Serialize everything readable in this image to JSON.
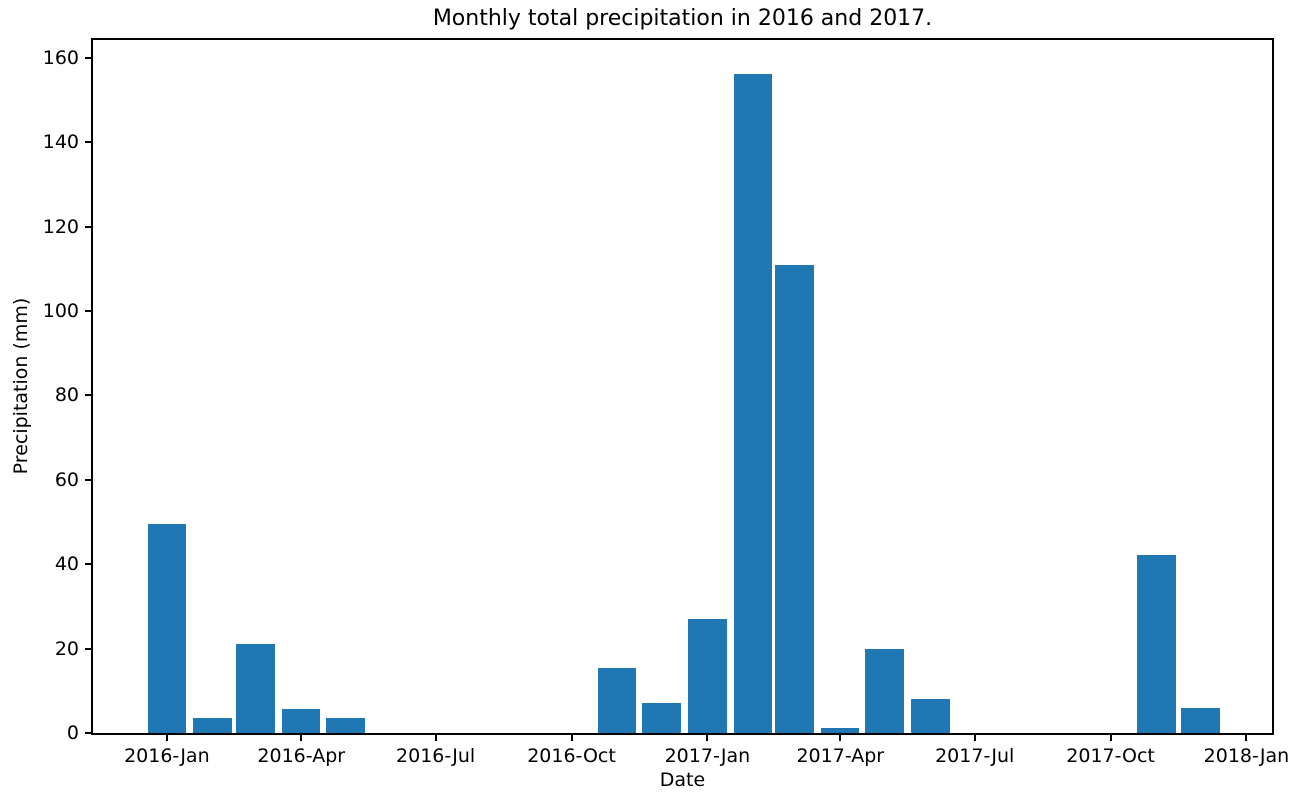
{
  "chart_data": {
    "type": "bar",
    "title": "Monthly total precipitation in 2016 and 2017.",
    "xlabel": "Date",
    "ylabel": "Precipitation (mm)",
    "bar_color": "#1f77b4",
    "grid": false,
    "legend": null,
    "ylim": [
      0,
      164.2
    ],
    "y_ticks": [
      0,
      20,
      40,
      60,
      80,
      100,
      120,
      140,
      160
    ],
    "xlim_days": [
      -50,
      748.3
    ],
    "bar_width_days": 26,
    "x_ticks": [
      {
        "label": "2016-Jan",
        "day": 0
      },
      {
        "label": "2016-Apr",
        "day": 91
      },
      {
        "label": "2016-Jul",
        "day": 182
      },
      {
        "label": "2016-Oct",
        "day": 274
      },
      {
        "label": "2017-Jan",
        "day": 366
      },
      {
        "label": "2017-Apr",
        "day": 456
      },
      {
        "label": "2017-Jul",
        "day": 547
      },
      {
        "label": "2017-Oct",
        "day": 639
      },
      {
        "label": "2018-Jan",
        "day": 731
      }
    ],
    "series": [
      {
        "name": "monthly-total-precipitation",
        "points": [
          {
            "month": "2016-01",
            "day": 0,
            "value": 49.5
          },
          {
            "month": "2016-02",
            "day": 31,
            "value": 3.5
          },
          {
            "month": "2016-03",
            "day": 60,
            "value": 21.2
          },
          {
            "month": "2016-04",
            "day": 91,
            "value": 5.8
          },
          {
            "month": "2016-05",
            "day": 121,
            "value": 3.5
          },
          {
            "month": "2016-06",
            "day": 152,
            "value": 0
          },
          {
            "month": "2016-07",
            "day": 182,
            "value": 0
          },
          {
            "month": "2016-08",
            "day": 213,
            "value": 0
          },
          {
            "month": "2016-09",
            "day": 244,
            "value": 0
          },
          {
            "month": "2016-10",
            "day": 274,
            "value": 0
          },
          {
            "month": "2016-11",
            "day": 305,
            "value": 15.5
          },
          {
            "month": "2016-12",
            "day": 335,
            "value": 7.0
          },
          {
            "month": "2017-01",
            "day": 366,
            "value": 26.9
          },
          {
            "month": "2017-02",
            "day": 397,
            "value": 156.2
          },
          {
            "month": "2017-03",
            "day": 425,
            "value": 111.0
          },
          {
            "month": "2017-04",
            "day": 456,
            "value": 1.3
          },
          {
            "month": "2017-05",
            "day": 486,
            "value": 19.9
          },
          {
            "month": "2017-06",
            "day": 517,
            "value": 8.1
          },
          {
            "month": "2017-07",
            "day": 547,
            "value": 0
          },
          {
            "month": "2017-08",
            "day": 578,
            "value": 0
          },
          {
            "month": "2017-09",
            "day": 609,
            "value": 0
          },
          {
            "month": "2017-10",
            "day": 639,
            "value": 0
          },
          {
            "month": "2017-11",
            "day": 670,
            "value": 42.2
          },
          {
            "month": "2017-12",
            "day": 700,
            "value": 6.0
          }
        ]
      }
    ]
  }
}
